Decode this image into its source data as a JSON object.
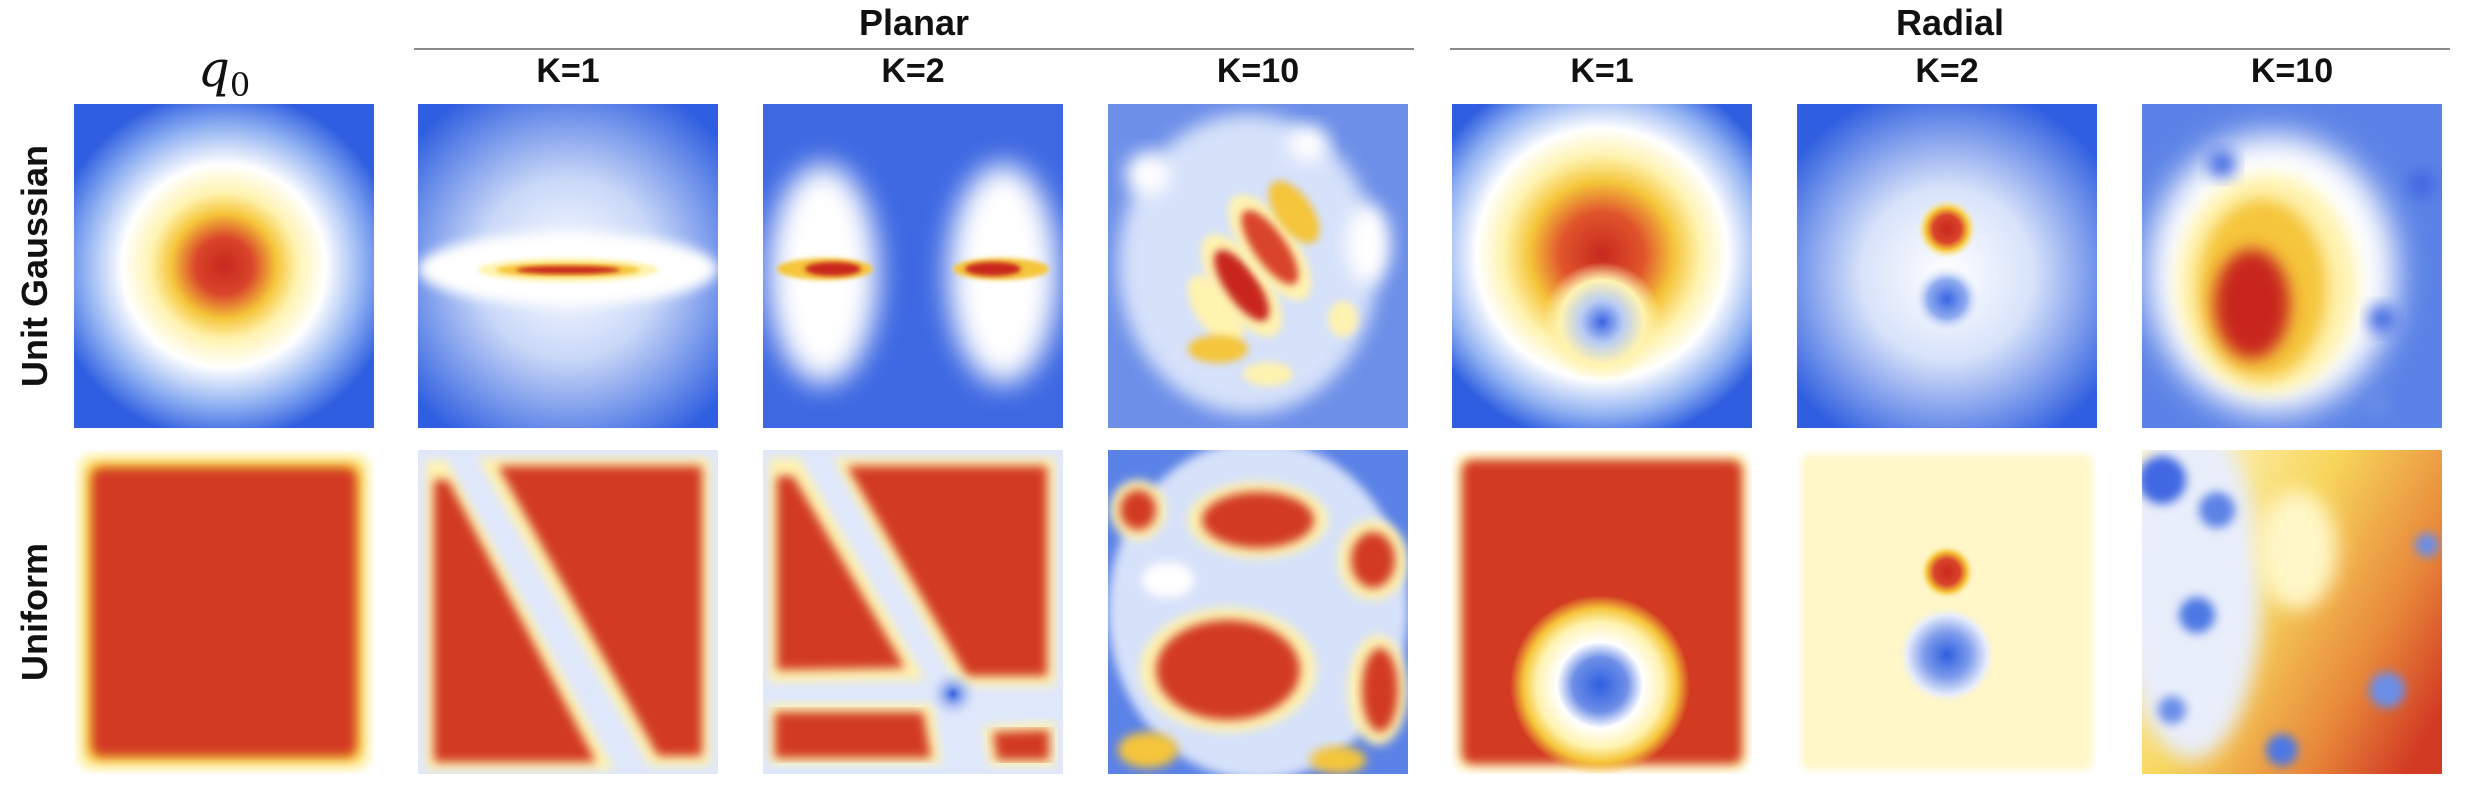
{
  "header": {
    "q0_label": "q",
    "q0_subscript": "0",
    "groups": [
      {
        "title": "Planar"
      },
      {
        "title": "Radial"
      }
    ],
    "columns": [
      "K=1",
      "K=2",
      "K=10",
      "K=1",
      "K=2",
      "K=10"
    ]
  },
  "rows": [
    {
      "label": "Unit Gaussian"
    },
    {
      "label": "Uniform"
    }
  ],
  "colors": {
    "low": "#2f5fe0",
    "mid_low": "#ffffff",
    "mid": "#fff3b0",
    "mid_high": "#f5c53a",
    "high": "#c8281e"
  },
  "panels": [
    {
      "name": "panel-gaussian-q0",
      "shows": "unit Gaussian base density"
    },
    {
      "name": "panel-gaussian-planar-k1",
      "shows": "planar flow K=1 on Gaussian"
    },
    {
      "name": "panel-gaussian-planar-k2",
      "shows": "planar flow K=2 on Gaussian"
    },
    {
      "name": "panel-gaussian-planar-k10",
      "shows": "planar flow K=10 on Gaussian"
    },
    {
      "name": "panel-gaussian-radial-k1",
      "shows": "radial flow K=1 on Gaussian"
    },
    {
      "name": "panel-gaussian-radial-k2",
      "shows": "radial flow K=2 on Gaussian"
    },
    {
      "name": "panel-gaussian-radial-k10",
      "shows": "radial flow K=10 on Gaussian"
    },
    {
      "name": "panel-uniform-q0",
      "shows": "uniform base density"
    },
    {
      "name": "panel-uniform-planar-k1",
      "shows": "planar flow K=1 on uniform"
    },
    {
      "name": "panel-uniform-planar-k2",
      "shows": "planar flow K=2 on uniform"
    },
    {
      "name": "panel-uniform-planar-k10",
      "shows": "planar flow K=10 on uniform"
    },
    {
      "name": "panel-uniform-radial-k1",
      "shows": "radial flow K=1 on uniform"
    },
    {
      "name": "panel-uniform-radial-k2",
      "shows": "radial flow K=2 on uniform"
    },
    {
      "name": "panel-uniform-radial-k10",
      "shows": "radial flow K=10 on uniform"
    }
  ]
}
